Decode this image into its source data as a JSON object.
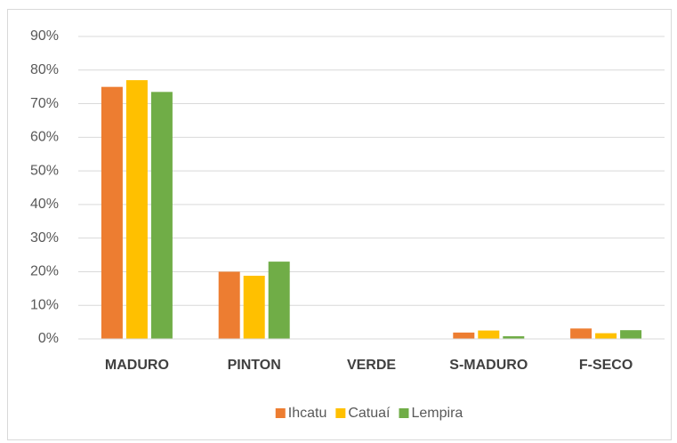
{
  "chart_data": {
    "type": "bar",
    "categories": [
      "MADURO",
      "PINTON",
      "VERDE",
      "S-MADURO",
      "F-SECO"
    ],
    "series": [
      {
        "name": "Ihcatu",
        "color": "#ed7d31",
        "values": [
          75,
          20,
          0,
          1.9,
          3.1
        ]
      },
      {
        "name": "Catuaí",
        "color": "#ffc000",
        "values": [
          77,
          18.8,
          0,
          2.5,
          1.7
        ]
      },
      {
        "name": "Lempira",
        "color": "#70ad47",
        "values": [
          73.5,
          23,
          0,
          0.8,
          2.6
        ]
      }
    ],
    "ylim": [
      0,
      90
    ],
    "yticks": [
      {
        "value": 0,
        "label": "0%"
      },
      {
        "value": 10,
        "label": "10%"
      },
      {
        "value": 20,
        "label": "20%"
      },
      {
        "value": 30,
        "label": "30%"
      },
      {
        "value": 40,
        "label": "40%"
      },
      {
        "value": 50,
        "label": "50%"
      },
      {
        "value": 60,
        "label": "60%"
      },
      {
        "value": 70,
        "label": "70%"
      },
      {
        "value": 80,
        "label": "80%"
      },
      {
        "value": 90,
        "label": "90%"
      }
    ],
    "grid": true,
    "legend": "bottom"
  }
}
